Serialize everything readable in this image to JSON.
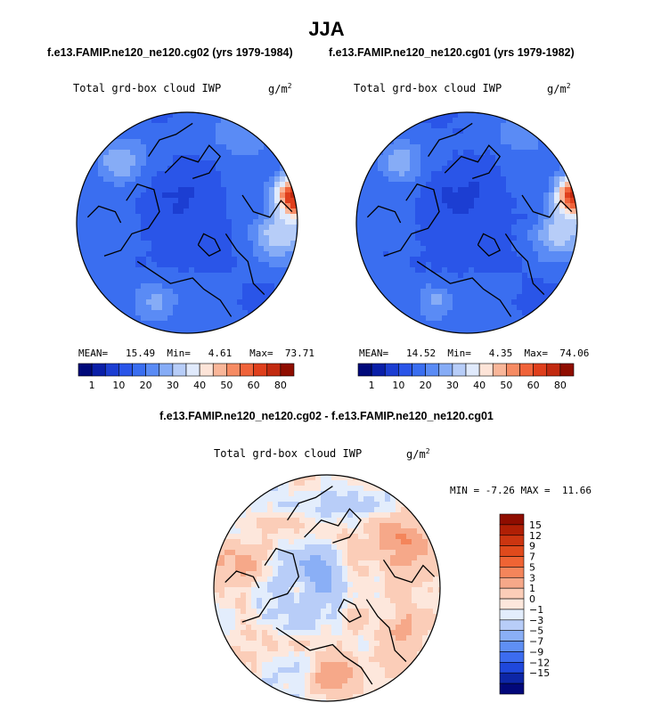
{
  "page": {
    "season": "JJA",
    "case1_title": "f.e13.FAMIP.ne120_ne120.cg02 (yrs 1979-1984)",
    "case2_title": "f.e13.FAMIP.ne120_ne120.cg01 (yrs 1979-1982)",
    "diff_title": "f.e13.FAMIP.ne120_ne120.cg02 - f.e13.FAMIP.ne120_ne120.cg01"
  },
  "chart_data": [
    {
      "type": "heatmap",
      "projection": "north-polar-stereographic",
      "variable": "Total grd-box cloud IWP",
      "units": "g/m",
      "units_exp": "2",
      "stats": {
        "mean_label": "MEAN=",
        "mean": "15.49",
        "min_label": "Min=",
        "min": "4.61",
        "max_label": "Max=",
        "max": "73.71"
      },
      "contour_levels": [
        1,
        5,
        10,
        15,
        20,
        25,
        30,
        35,
        40,
        45,
        50,
        55,
        60,
        70,
        80
      ],
      "tick_labels": [
        "1",
        "10",
        "20",
        "30",
        "40",
        "50",
        "60",
        "80"
      ],
      "colors": [
        "#00097a",
        "#0a1fa8",
        "#1c3ed2",
        "#2a55e8",
        "#3a6ef0",
        "#5a8bf5",
        "#86acf6",
        "#b7cdf8",
        "#e0eafc",
        "#fde4d8",
        "#f9b699",
        "#f68b63",
        "#f0633a",
        "#df3f1c",
        "#c22a10",
        "#8f0d00"
      ]
    },
    {
      "type": "heatmap",
      "projection": "north-polar-stereographic",
      "variable": "Total grd-box cloud IWP",
      "units": "g/m",
      "units_exp": "2",
      "stats": {
        "mean_label": "MEAN=",
        "mean": "14.52",
        "min_label": "Min=",
        "min": "4.35",
        "max_label": "Max=",
        "max": "74.06"
      },
      "contour_levels": [
        1,
        5,
        10,
        15,
        20,
        25,
        30,
        35,
        40,
        45,
        50,
        55,
        60,
        70,
        80
      ],
      "tick_labels": [
        "1",
        "10",
        "20",
        "30",
        "40",
        "50",
        "60",
        "80"
      ],
      "colors": [
        "#00097a",
        "#0a1fa8",
        "#1c3ed2",
        "#2a55e8",
        "#3a6ef0",
        "#5a8bf5",
        "#86acf6",
        "#b7cdf8",
        "#e0eafc",
        "#fde4d8",
        "#f9b699",
        "#f68b63",
        "#f0633a",
        "#df3f1c",
        "#c22a10",
        "#8f0d00"
      ]
    },
    {
      "type": "heatmap",
      "projection": "north-polar-stereographic",
      "variable": "Total grd-box cloud IWP",
      "units": "g/m",
      "units_exp": "2",
      "stats": {
        "min_label": "MIN =",
        "min": "-7.26",
        "max_label": "MAX =",
        "max": "11.66"
      },
      "tick_labels": [
        "15",
        "12",
        "9",
        "7",
        "5",
        "3",
        "1",
        "0",
        "−1",
        "−3",
        "−5",
        "−7",
        "−9",
        "−12",
        "−15"
      ],
      "colors": [
        "#8f0d00",
        "#b01f05",
        "#cc3510",
        "#e04a1c",
        "#ef6434",
        "#f4855b",
        "#f6a889",
        "#fbcdb8",
        "#fde7dc",
        "#e3edfc",
        "#b8cdf8",
        "#8aaff6",
        "#5f8ff4",
        "#3c6cef",
        "#1f48dc",
        "#0d26a6",
        "#02087a"
      ]
    }
  ]
}
